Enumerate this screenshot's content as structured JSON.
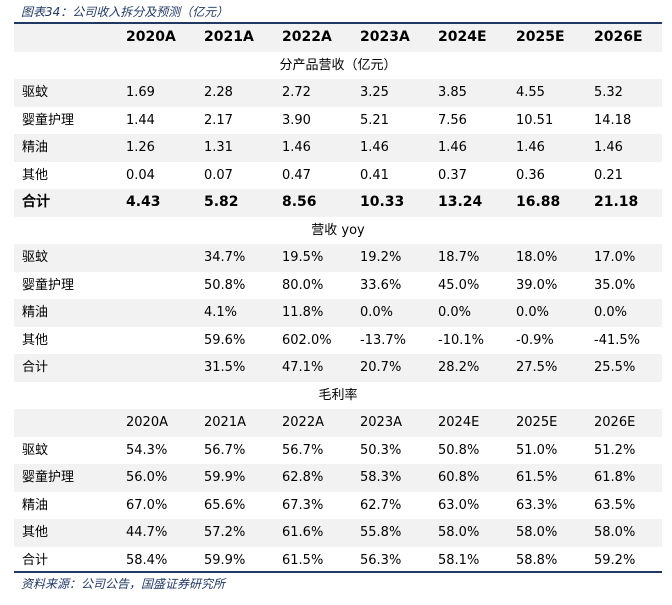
{
  "caption": "图表34：公司收入拆分及预测（亿元）",
  "source": "资料来源：公司公告，国盛证券研究所",
  "header_years": [
    "2020A",
    "2021A",
    "2022A",
    "2023A",
    "2024E",
    "2025E",
    "2026E"
  ],
  "sections": [
    {
      "title": "分产品营收（亿元）",
      "sub_years": null,
      "rows": [
        {
          "label": "驱蚊",
          "values": [
            "1.69",
            "2.28",
            "2.72",
            "3.25",
            "3.85",
            "4.55",
            "5.32"
          ]
        },
        {
          "label": "婴童护理",
          "values": [
            "1.44",
            "2.17",
            "3.90",
            "5.21",
            "7.56",
            "10.51",
            "14.18"
          ]
        },
        {
          "label": "精油",
          "values": [
            "1.26",
            "1.31",
            "1.46",
            "1.46",
            "1.46",
            "1.46",
            "1.46"
          ]
        },
        {
          "label": "其他",
          "values": [
            "0.04",
            "0.07",
            "0.47",
            "0.41",
            "0.37",
            "0.36",
            "0.21"
          ]
        },
        {
          "label": "合计",
          "values": [
            "4.43",
            "5.82",
            "8.56",
            "10.33",
            "13.24",
            "16.88",
            "21.18"
          ],
          "bold": true
        }
      ]
    },
    {
      "title": "营收 yoy",
      "sub_years": null,
      "rows": [
        {
          "label": "驱蚊",
          "values": [
            "",
            "34.7%",
            "19.5%",
            "19.2%",
            "18.7%",
            "18.0%",
            "17.0%"
          ]
        },
        {
          "label": "婴童护理",
          "values": [
            "",
            "50.8%",
            "80.0%",
            "33.6%",
            "45.0%",
            "39.0%",
            "35.0%"
          ]
        },
        {
          "label": "精油",
          "values": [
            "",
            "4.1%",
            "11.8%",
            "0.0%",
            "0.0%",
            "0.0%",
            "0.0%"
          ]
        },
        {
          "label": "其他",
          "values": [
            "",
            "59.6%",
            "602.0%",
            "-13.7%",
            "-10.1%",
            "-0.9%",
            "-41.5%"
          ]
        },
        {
          "label": "合计",
          "values": [
            "",
            "31.5%",
            "47.1%",
            "20.7%",
            "28.2%",
            "27.5%",
            "25.5%"
          ]
        }
      ]
    },
    {
      "title": "毛利率",
      "sub_years": [
        "2020A",
        "2021A",
        "2022A",
        "2023A",
        "2024E",
        "2025E",
        "2026E"
      ],
      "rows": [
        {
          "label": "驱蚊",
          "values": [
            "54.3%",
            "56.7%",
            "56.7%",
            "50.3%",
            "50.8%",
            "51.0%",
            "51.2%"
          ]
        },
        {
          "label": "婴童护理",
          "values": [
            "56.0%",
            "59.9%",
            "62.8%",
            "58.3%",
            "60.8%",
            "61.5%",
            "61.8%"
          ]
        },
        {
          "label": "精油",
          "values": [
            "67.0%",
            "65.6%",
            "67.3%",
            "62.7%",
            "63.0%",
            "63.3%",
            "63.5%"
          ]
        },
        {
          "label": "其他",
          "values": [
            "44.7%",
            "57.2%",
            "61.6%",
            "55.8%",
            "58.0%",
            "58.0%",
            "58.0%"
          ]
        },
        {
          "label": "合计",
          "values": [
            "58.4%",
            "59.9%",
            "61.5%",
            "56.3%",
            "58.1%",
            "58.8%",
            "59.2%"
          ]
        }
      ]
    }
  ]
}
